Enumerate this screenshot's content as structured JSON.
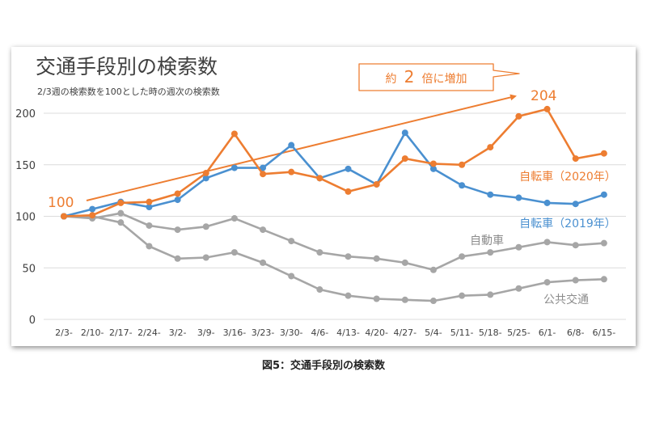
{
  "chart_data": {
    "type": "line",
    "title": "交通手段別の検索数",
    "subtitle": "2/3週の検索数を100とした時の週次の検索数",
    "categories": [
      "2/3-",
      "2/10-",
      "2/17-",
      "2/24-",
      "3/2-",
      "3/9-",
      "3/16-",
      "3/23-",
      "3/30-",
      "4/6-",
      "4/13-",
      "4/20-",
      "4/27-",
      "5/4-",
      "5/11-",
      "5/18-",
      "5/25-",
      "6/1-",
      "6/8-",
      "6/15-"
    ],
    "ylim": [
      0,
      200
    ],
    "yticks": [
      0,
      50,
      100,
      150,
      200
    ],
    "grid": true,
    "series": [
      {
        "name": "自転車（2020年）",
        "color": "#ed7d31",
        "values": [
          100,
          101,
          113,
          114,
          122,
          142,
          180,
          141,
          143,
          137,
          124,
          131,
          156,
          151,
          150,
          167,
          197,
          204,
          156,
          161
        ]
      },
      {
        "name": "自転車（2019年）",
        "color": "#4a90d0",
        "values": [
          100,
          107,
          114,
          109,
          116,
          137,
          147,
          147,
          169,
          137,
          146,
          131,
          181,
          146,
          130,
          121,
          118,
          113,
          112,
          121
        ]
      },
      {
        "name": "自動車",
        "color": "#a6a6a6",
        "values": [
          100,
          98,
          103,
          91,
          87,
          90,
          98,
          87,
          76,
          65,
          61,
          59,
          55,
          48,
          61,
          65,
          70,
          75,
          72,
          74
        ]
      },
      {
        "name": "公共交通",
        "color": "#a6a6a6",
        "values": [
          100,
          100,
          94,
          71,
          59,
          60,
          65,
          55,
          42,
          29,
          23,
          20,
          19,
          18,
          23,
          24,
          30,
          36,
          38,
          39
        ]
      }
    ],
    "annotations": {
      "start_label": "100",
      "peak_label": "204",
      "callout_prefix": "約",
      "callout_number": "2",
      "callout_suffix": "倍に増加"
    }
  },
  "caption": "図5：交通手段別の検索数"
}
